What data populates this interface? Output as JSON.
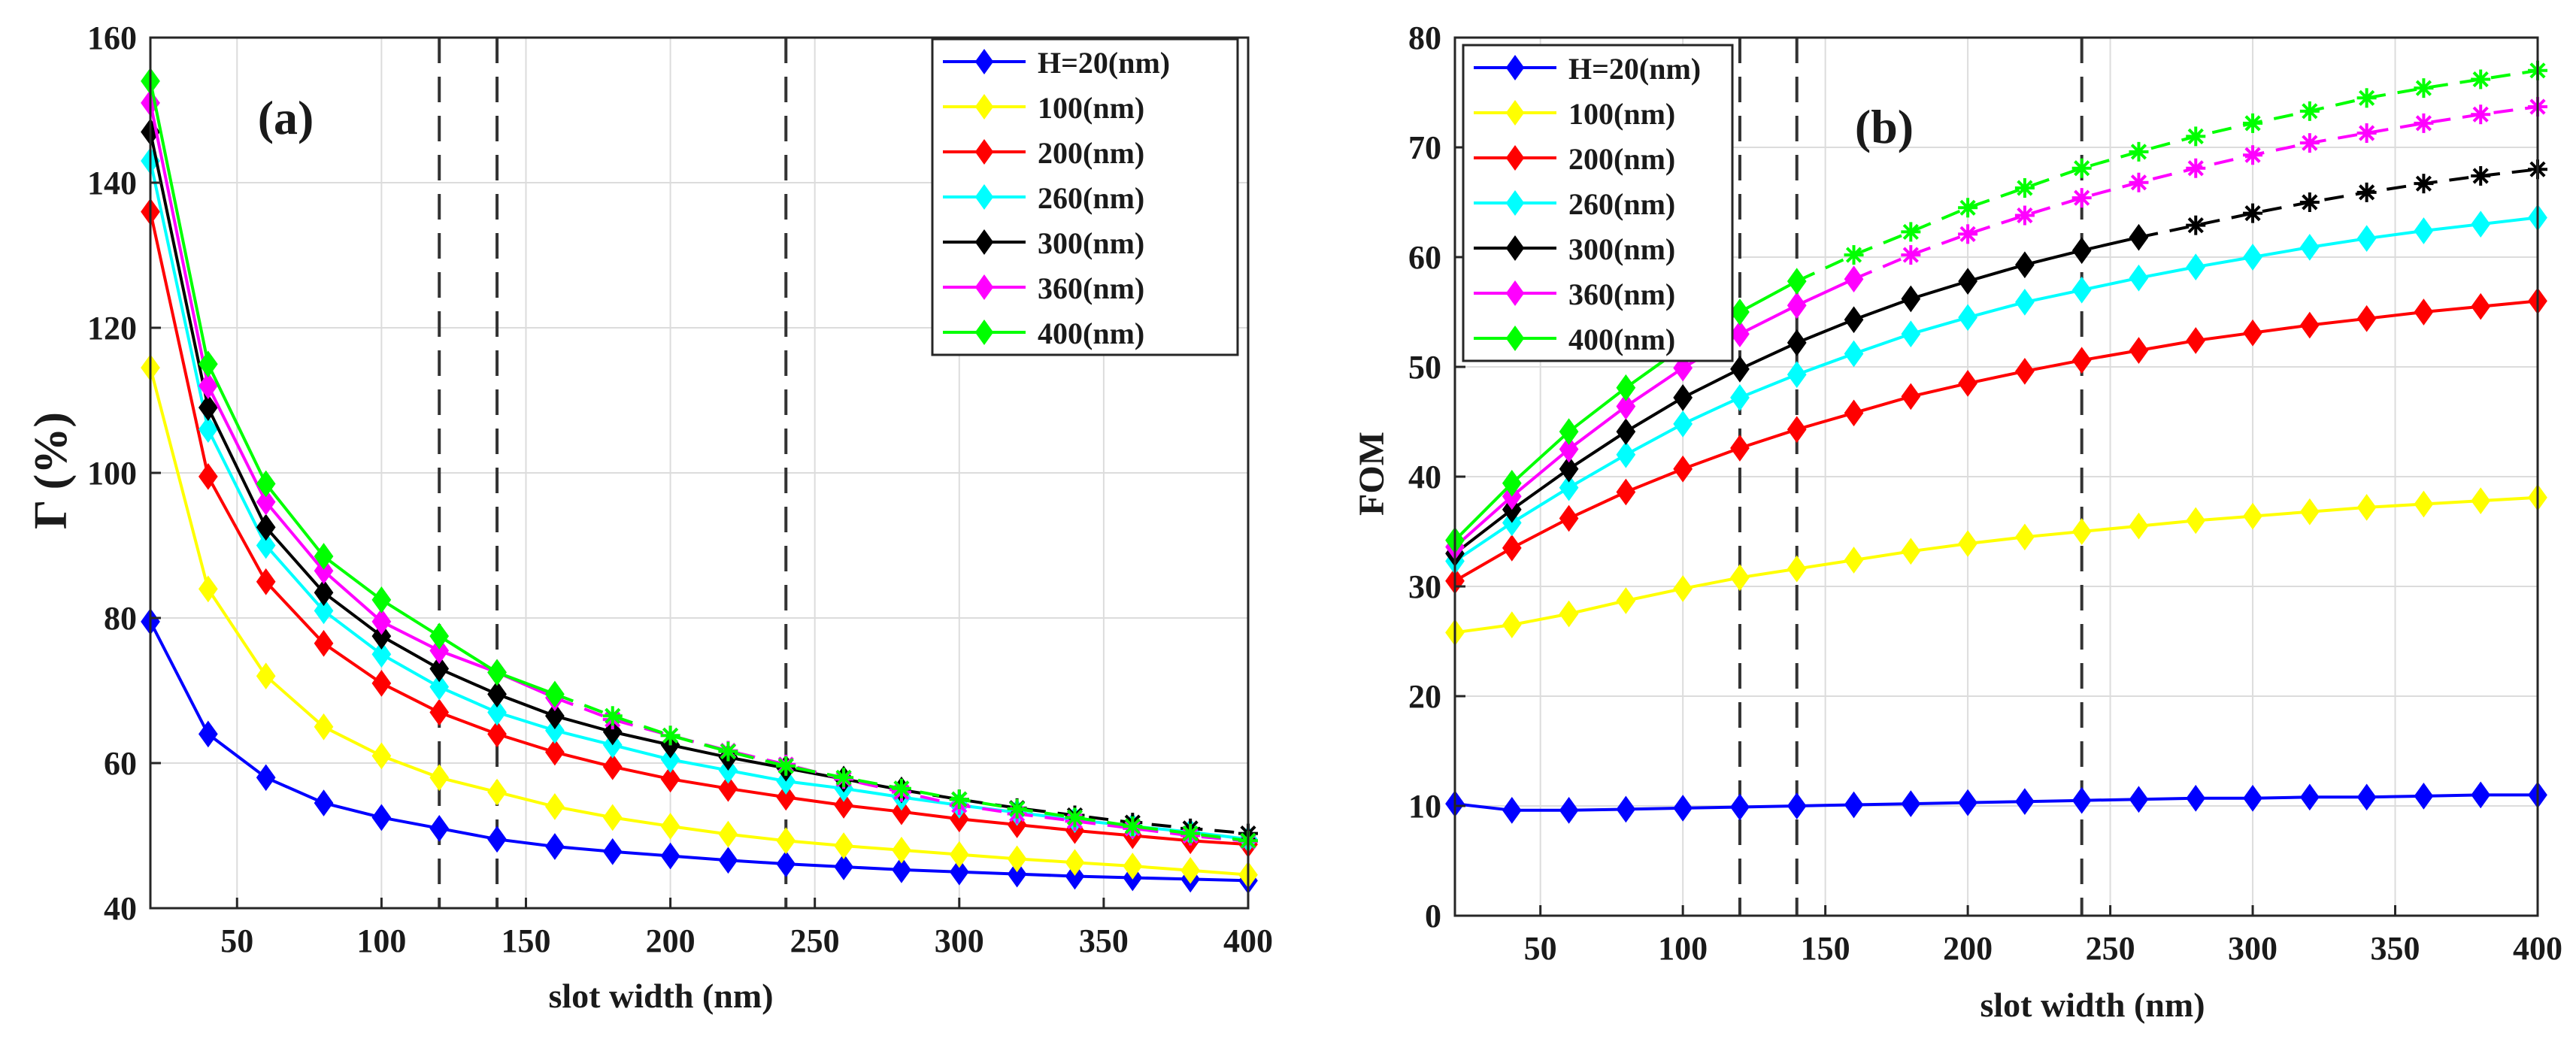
{
  "chart_data": [
    {
      "type": "line",
      "panel_label": "(a)",
      "xlabel": "slot width (nm)",
      "ylabel": "Γ (%)",
      "xlim": [
        20,
        400
      ],
      "ylim": [
        40,
        160
      ],
      "xticks": [
        50,
        100,
        150,
        200,
        250,
        300,
        350,
        400
      ],
      "yticks": [
        40,
        60,
        80,
        100,
        120,
        140,
        160
      ],
      "grid": true,
      "legend_position": "top-right",
      "vlines": [
        120,
        140,
        240
      ],
      "x": [
        20,
        40,
        60,
        80,
        100,
        120,
        140,
        160,
        180,
        200,
        220,
        240,
        260,
        280,
        300,
        320,
        340,
        360,
        380,
        400
      ],
      "series": [
        {
          "name": "H=20(nm)",
          "color": "#0000ff",
          "style": "solid-diamond",
          "values": [
            79.5,
            64,
            58,
            54.5,
            52.5,
            51,
            49.5,
            48.5,
            47.8,
            47.2,
            46.6,
            46.1,
            45.7,
            45.3,
            45,
            44.7,
            44.4,
            44.2,
            44,
            43.8
          ]
        },
        {
          "name": "100(nm)",
          "color": "#ffff00",
          "style": "solid-diamond",
          "values": [
            114.5,
            84,
            72,
            65,
            61,
            58,
            56,
            54,
            52.5,
            51.3,
            50.2,
            49.3,
            48.6,
            48,
            47.4,
            46.8,
            46.3,
            45.8,
            45.2,
            44.6
          ]
        },
        {
          "name": "200(nm)",
          "color": "#ff0000",
          "style": "solid-diamond",
          "values": [
            136,
            99.5,
            85,
            76.5,
            71,
            67,
            64,
            61.5,
            59.5,
            57.8,
            56.5,
            55.3,
            54.2,
            53.3,
            52.3,
            51.5,
            50.7,
            50,
            49.3,
            48.8
          ]
        },
        {
          "name": "260(nm)",
          "color": "#00ffff",
          "style": "solid-diamond",
          "values": [
            143,
            106,
            90,
            81,
            75,
            70.5,
            67,
            64.5,
            62.5,
            60.5,
            59,
            57.5,
            56.5,
            55.3,
            54.2,
            53.2,
            52.2,
            51.3,
            50.5,
            49.5
          ]
        },
        {
          "name": "300(nm)",
          "color": "#000000",
          "style": "solid-diamond",
          "dashed_from_x": 280,
          "values": [
            147,
            109,
            92.5,
            83.5,
            77.5,
            73,
            69.5,
            66.5,
            64.3,
            62.5,
            60.8,
            59.3,
            57.8,
            56.3,
            55,
            53.8,
            52.8,
            51.8,
            51,
            50.3
          ]
        },
        {
          "name": "360(nm)",
          "color": "#ff00ff",
          "style": "solid-diamond",
          "dashed_from_x": 160,
          "values": [
            151,
            112,
            96,
            86.5,
            79.5,
            75.5,
            72.5,
            69,
            66,
            63.8,
            61.7,
            59.8,
            57.8,
            56,
            54.2,
            53,
            52,
            51,
            50,
            49.2
          ]
        },
        {
          "name": "400(nm)",
          "color": "#00ff00",
          "style": "solid-diamond",
          "dashed_from_x": 160,
          "values": [
            154,
            115,
            98.5,
            88.5,
            82.5,
            77.5,
            72.5,
            69.5,
            66.5,
            63.8,
            61.6,
            59.6,
            58,
            56.5,
            55,
            53.7,
            52.5,
            51.3,
            50.3,
            49.3
          ]
        }
      ]
    },
    {
      "type": "line",
      "panel_label": "(b)",
      "xlabel": "slot width (nm)",
      "ylabel": "FOM",
      "xlim": [
        20,
        400
      ],
      "ylim": [
        0,
        80
      ],
      "xticks": [
        50,
        100,
        150,
        200,
        250,
        300,
        350,
        400
      ],
      "yticks": [
        0,
        10,
        20,
        30,
        40,
        50,
        60,
        70,
        80
      ],
      "grid": true,
      "legend_position": "top-left",
      "vlines": [
        120,
        140,
        240
      ],
      "x": [
        20,
        40,
        60,
        80,
        100,
        120,
        140,
        160,
        180,
        200,
        220,
        240,
        260,
        280,
        300,
        320,
        340,
        360,
        380,
        400
      ],
      "series": [
        {
          "name": "H=20(nm)",
          "color": "#0000ff",
          "style": "solid-diamond",
          "values": [
            10.2,
            9.6,
            9.6,
            9.7,
            9.8,
            9.9,
            10,
            10.1,
            10.2,
            10.3,
            10.4,
            10.5,
            10.6,
            10.7,
            10.7,
            10.8,
            10.8,
            10.9,
            11,
            11
          ]
        },
        {
          "name": "100(nm)",
          "color": "#ffff00",
          "style": "solid-diamond",
          "values": [
            25.8,
            26.5,
            27.5,
            28.7,
            29.8,
            30.8,
            31.6,
            32.4,
            33.2,
            33.9,
            34.5,
            35,
            35.5,
            36,
            36.4,
            36.8,
            37.2,
            37.5,
            37.8,
            38.1
          ]
        },
        {
          "name": "200(nm)",
          "color": "#ff0000",
          "style": "solid-diamond",
          "values": [
            30.5,
            33.5,
            36.2,
            38.6,
            40.7,
            42.6,
            44.3,
            45.8,
            47.3,
            48.5,
            49.6,
            50.6,
            51.5,
            52.4,
            53.1,
            53.8,
            54.4,
            55,
            55.5,
            56
          ]
        },
        {
          "name": "260(nm)",
          "color": "#00ffff",
          "style": "solid-diamond",
          "values": [
            32.3,
            35.8,
            39,
            42,
            44.8,
            47.2,
            49.3,
            51.2,
            53,
            54.5,
            55.9,
            57,
            58.1,
            59.1,
            60,
            60.9,
            61.7,
            62.4,
            63,
            63.6
          ]
        },
        {
          "name": "300(nm)",
          "color": "#000000",
          "style": "solid-diamond",
          "dashed_from_x": 260,
          "values": [
            33,
            37,
            40.7,
            44.1,
            47.2,
            49.8,
            52.2,
            54.3,
            56.2,
            57.8,
            59.3,
            60.6,
            61.8,
            62.9,
            64,
            65,
            65.9,
            66.7,
            67.4,
            68
          ]
        },
        {
          "name": "360(nm)",
          "color": "#ff00ff",
          "style": "solid-diamond",
          "dashed_from_x": 160,
          "values": [
            33.6,
            38.2,
            42.5,
            46.4,
            49.9,
            53,
            55.6,
            58,
            60.2,
            62.1,
            63.8,
            65.4,
            66.8,
            68.1,
            69.3,
            70.4,
            71.3,
            72.2,
            73,
            73.7
          ]
        },
        {
          "name": "400(nm)",
          "color": "#00ff00",
          "style": "solid-diamond",
          "dashed_from_x": 140,
          "values": [
            34.2,
            39.4,
            44.1,
            48.1,
            51.8,
            55,
            57.8,
            60.2,
            62.3,
            64.5,
            66.3,
            68.1,
            69.6,
            71,
            72.2,
            73.3,
            74.5,
            75.4,
            76.2,
            77
          ]
        }
      ]
    }
  ]
}
